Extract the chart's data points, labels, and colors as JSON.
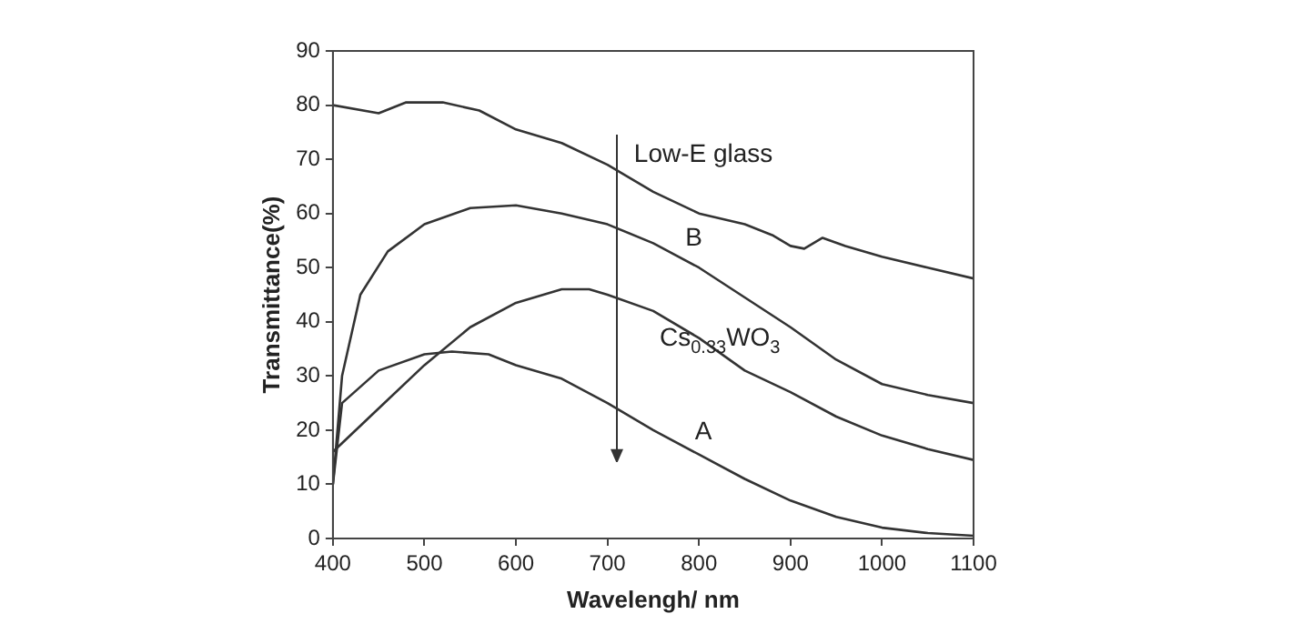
{
  "chart_data": {
    "type": "line",
    "xlabel": "Wavelengh/ nm",
    "ylabel": "Transmittance(%)",
    "xlim": [
      400,
      1100
    ],
    "xticks": [
      400,
      500,
      600,
      700,
      800,
      900,
      1000,
      1100
    ],
    "ylim": [
      0,
      90
    ],
    "yticks": [
      0,
      10,
      20,
      30,
      40,
      50,
      60,
      70,
      80,
      90
    ],
    "grid": false,
    "marker": "none",
    "line_style": "solid",
    "series": [
      {
        "name": "Low-E glass",
        "color": "#333333",
        "x": [
          400,
          450,
          480,
          520,
          560,
          600,
          650,
          700,
          750,
          800,
          850,
          880,
          900,
          915,
          935,
          960,
          1000,
          1050,
          1100
        ],
        "values": [
          80,
          78.5,
          80.5,
          80.5,
          79,
          75.5,
          73,
          69,
          64,
          60,
          58,
          56,
          54,
          53.5,
          55.5,
          54,
          52,
          50,
          48
        ]
      },
      {
        "name": "B",
        "color": "#333333",
        "x": [
          400,
          410,
          430,
          460,
          500,
          550,
          600,
          650,
          700,
          750,
          800,
          850,
          900,
          950,
          1000,
          1050,
          1100
        ],
        "values": [
          10,
          30,
          45,
          53,
          58,
          61,
          61.5,
          60,
          58,
          54.5,
          50,
          44.5,
          39,
          33,
          28.5,
          26.5,
          25
        ]
      },
      {
        "name": "Cs$_{0.33}$WO$_{3}$",
        "color": "#333333",
        "x": [
          400,
          450,
          500,
          550,
          600,
          650,
          680,
          700,
          750,
          800,
          850,
          900,
          950,
          1000,
          1050,
          1100
        ],
        "values": [
          16,
          24,
          32,
          39,
          43.5,
          46,
          46,
          45,
          42,
          37,
          31,
          27,
          22.5,
          19,
          16.5,
          14.5
        ]
      },
      {
        "name": "A",
        "color": "#333333",
        "x": [
          400,
          410,
          450,
          500,
          530,
          570,
          600,
          650,
          700,
          750,
          800,
          850,
          900,
          950,
          1000,
          1050,
          1100
        ],
        "values": [
          10,
          25,
          31,
          34,
          34.5,
          34,
          32,
          29.5,
          25,
          20,
          15.5,
          11,
          7,
          4,
          2,
          1,
          0.5
        ]
      }
    ]
  }
}
